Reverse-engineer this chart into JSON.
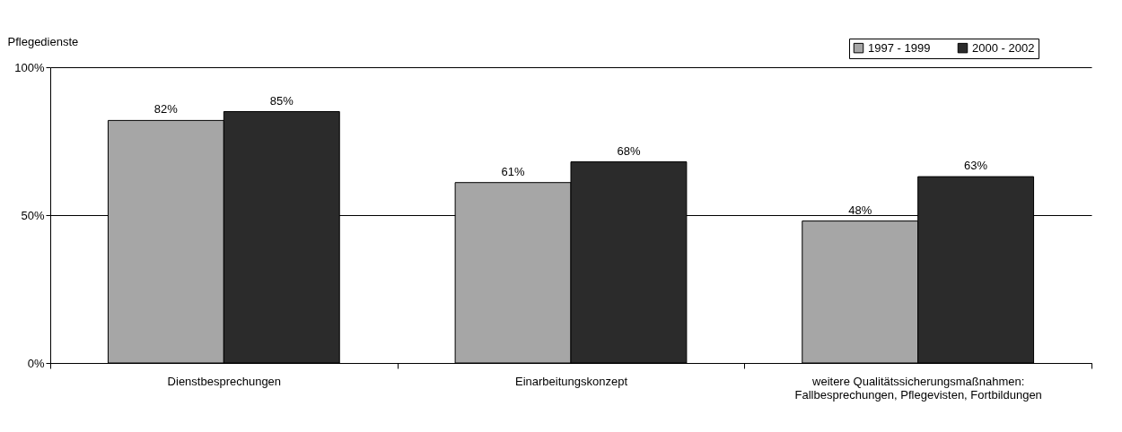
{
  "chart_data": {
    "type": "bar",
    "ylabel": "Pflegedienste",
    "categories": [
      "Dienstbesprechungen",
      "Einarbeitungskonzept",
      "weitere Qualitätssicherungsmaßnahmen:\nFallbesprechungen, Pflegevisten, Fortbildungen"
    ],
    "series": [
      {
        "name": "1997 - 1999",
        "color": "#a6a6a6",
        "values": [
          82,
          61,
          48
        ],
        "value_labels": [
          "82%",
          "61%",
          "48%"
        ]
      },
      {
        "name": "2000 - 2002",
        "color": "#2b2b2b",
        "values": [
          85,
          68,
          63
        ],
        "value_labels": [
          "85%",
          "68%",
          "63%"
        ]
      }
    ],
    "ylim": [
      0,
      100
    ],
    "yticks": [
      {
        "value": 0,
        "label": "0%"
      },
      {
        "value": 50,
        "label": "50%"
      },
      {
        "value": 100,
        "label": "100%"
      }
    ],
    "grid": "y",
    "legend": "top right"
  }
}
